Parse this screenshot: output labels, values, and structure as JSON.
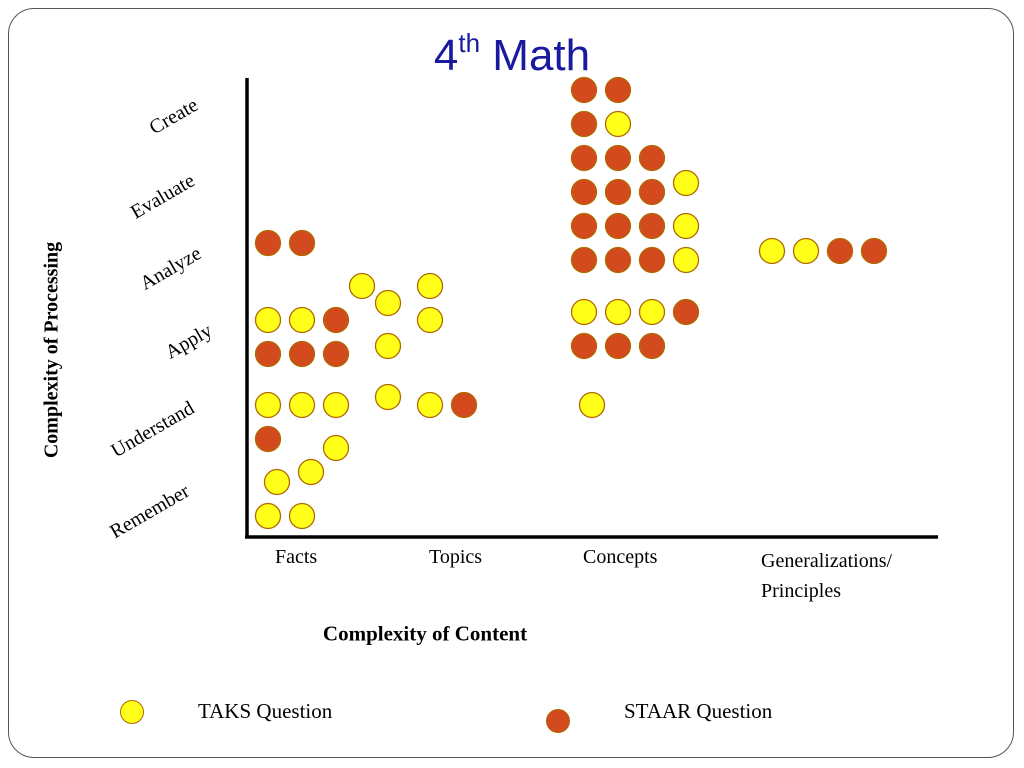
{
  "title": {
    "base": "4",
    "sup": "th",
    "rest": " Math"
  },
  "colors": {
    "taks": "#ffff1a",
    "staar": "#d24a1e",
    "stroke": "#b06a00",
    "axis": "#000000",
    "title": "#1a1a9e"
  },
  "legend": {
    "taks_label": "TAKS Question",
    "staar_label": "STAAR Question",
    "placement": "bottom"
  },
  "chart_data": {
    "type": "scatter",
    "xlabel": "Complexity of Content",
    "ylabel": "Complexity of  Processing",
    "x_categories": [
      "Facts",
      "Topics",
      "Concepts",
      "Generalizations/\nPrinciples"
    ],
    "y_categories": [
      "Remember",
      "Understand",
      "Apply",
      "Analyze",
      "Evaluate",
      "Create"
    ],
    "grid": false,
    "series": [
      {
        "name": "TAKS Question",
        "color": "#ffff1a",
        "points": [
          {
            "x": "Facts",
            "y": "Remember"
          },
          {
            "x": "Facts",
            "y": "Remember"
          },
          {
            "x": "Facts",
            "y": "Remember"
          },
          {
            "x": "Facts",
            "y": "Remember"
          },
          {
            "x": "Facts",
            "y": "Understand"
          },
          {
            "x": "Facts",
            "y": "Understand"
          },
          {
            "x": "Facts",
            "y": "Understand"
          },
          {
            "x": "Facts",
            "y": "Understand"
          },
          {
            "x": "Facts",
            "y": "Apply"
          },
          {
            "x": "Facts",
            "y": "Apply"
          },
          {
            "x": "Topics",
            "y": "Understand"
          },
          {
            "x": "Topics",
            "y": "Understand"
          },
          {
            "x": "Topics",
            "y": "Apply"
          },
          {
            "x": "Topics",
            "y": "Apply"
          },
          {
            "x": "Topics",
            "y": "Apply"
          },
          {
            "x": "Topics",
            "y": "Apply"
          },
          {
            "x": "Topics",
            "y": "Apply"
          },
          {
            "x": "Concepts",
            "y": "Understand"
          },
          {
            "x": "Concepts",
            "y": "Apply"
          },
          {
            "x": "Concepts",
            "y": "Apply"
          },
          {
            "x": "Concepts",
            "y": "Apply"
          },
          {
            "x": "Concepts",
            "y": "Analyze"
          },
          {
            "x": "Concepts",
            "y": "Evaluate"
          },
          {
            "x": "Concepts",
            "y": "Evaluate"
          },
          {
            "x": "Concepts",
            "y": "Create"
          },
          {
            "x": "Generalizations/\nPrinciples",
            "y": "Analyze"
          },
          {
            "x": "Generalizations/\nPrinciples",
            "y": "Analyze"
          }
        ]
      },
      {
        "name": "STAAR Question",
        "color": "#d24a1e",
        "points": [
          {
            "x": "Facts",
            "y": "Understand"
          },
          {
            "x": "Facts",
            "y": "Apply"
          },
          {
            "x": "Facts",
            "y": "Apply"
          },
          {
            "x": "Facts",
            "y": "Apply"
          },
          {
            "x": "Facts",
            "y": "Apply"
          },
          {
            "x": "Facts",
            "y": "Analyze"
          },
          {
            "x": "Facts",
            "y": "Analyze"
          },
          {
            "x": "Topics",
            "y": "Understand"
          },
          {
            "x": "Concepts",
            "y": "Apply"
          },
          {
            "x": "Concepts",
            "y": "Apply"
          },
          {
            "x": "Concepts",
            "y": "Apply"
          },
          {
            "x": "Concepts",
            "y": "Apply"
          },
          {
            "x": "Concepts",
            "y": "Analyze"
          },
          {
            "x": "Concepts",
            "y": "Analyze"
          },
          {
            "x": "Concepts",
            "y": "Analyze"
          },
          {
            "x": "Concepts",
            "y": "Evaluate"
          },
          {
            "x": "Concepts",
            "y": "Evaluate"
          },
          {
            "x": "Concepts",
            "y": "Evaluate"
          },
          {
            "x": "Concepts",
            "y": "Evaluate"
          },
          {
            "x": "Concepts",
            "y": "Evaluate"
          },
          {
            "x": "Concepts",
            "y": "Evaluate"
          },
          {
            "x": "Concepts",
            "y": "Create"
          },
          {
            "x": "Concepts",
            "y": "Create"
          },
          {
            "x": "Concepts",
            "y": "Create"
          },
          {
            "x": "Concepts",
            "y": "Create"
          },
          {
            "x": "Concepts",
            "y": "Create"
          },
          {
            "x": "Concepts",
            "y": "Create"
          },
          {
            "x": "Generalizations/\nPrinciples",
            "y": "Analyze"
          },
          {
            "x": "Generalizations/\nPrinciples",
            "y": "Analyze"
          }
        ]
      }
    ]
  }
}
